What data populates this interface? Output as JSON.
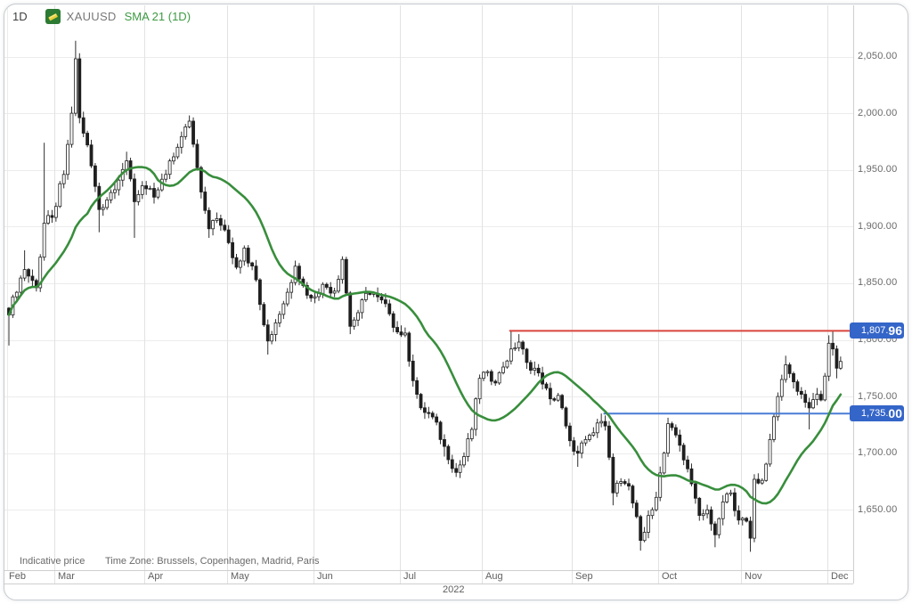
{
  "header": {
    "timeframe": "1D",
    "symbol": "XAUUSD",
    "indicator": "SMA 21 (1D)",
    "symbol_icon": "gold-bar-icon"
  },
  "footer": {
    "note": "Indicative price",
    "timezone": "Time Zone: Brussels, Copenhagen, Madrid, Paris"
  },
  "colors": {
    "up_candle": "#ffffff",
    "down_candle": "#1f1f1f",
    "candle_outline": "#2e2e2e",
    "sma": "#388e3c",
    "resistance": "#d9453d",
    "support": "#4a7bd5",
    "tag_bg": "#3465c8",
    "grid": "#ececec",
    "grid_vertical": "#e2e2e2",
    "axis_line": "#cfcfcf",
    "axis_text": "#6a6a6a"
  },
  "chart_data": {
    "type": "candlestick",
    "symbol": "XAUUSD",
    "interval": "1D",
    "num_candles": 213,
    "ylim": [
      1600,
      2095
    ],
    "grid": true,
    "overlays": [
      {
        "name": "SMA 21 (1D)",
        "kind": "sma",
        "period": 21,
        "color": "#388e3c"
      }
    ],
    "levels": [
      {
        "name": "resistance",
        "value": 1807.96,
        "label": "1,807.96",
        "main": "1,807.",
        "em": "96",
        "color": "#d9453d",
        "start_index": 128
      },
      {
        "name": "support",
        "value": 1735.0,
        "label": "1,735.00",
        "main": "1,735.",
        "em": "00",
        "color": "#4a7bd5",
        "start_index": 152
      }
    ],
    "y_axis": {
      "ticks": [
        {
          "value": 2050,
          "label": "2,050.00"
        },
        {
          "value": 2000,
          "label": "2,000.00"
        },
        {
          "value": 1950,
          "label": "1,950.00"
        },
        {
          "value": 1900,
          "label": "1,900.00"
        },
        {
          "value": 1850,
          "label": "1,850.00"
        },
        {
          "value": 1800,
          "label": "1,800.00"
        },
        {
          "value": 1750,
          "label": "1,750.00"
        },
        {
          "value": 1700,
          "label": "1,700.00"
        },
        {
          "value": 1650,
          "label": "1,650.00"
        }
      ]
    },
    "x_axis": {
      "year": "2022",
      "months": [
        {
          "name": "Feb",
          "start": 0
        },
        {
          "name": "Mar",
          "start": 12
        },
        {
          "name": "Apr",
          "start": 35
        },
        {
          "name": "May",
          "start": 56
        },
        {
          "name": "Jun",
          "start": 78
        },
        {
          "name": "Jul",
          "start": 100
        },
        {
          "name": "Aug",
          "start": 121
        },
        {
          "name": "Sep",
          "start": 144
        },
        {
          "name": "Oct",
          "start": 166
        },
        {
          "name": "Nov",
          "start": 187
        },
        {
          "name": "Dec",
          "start": 209
        }
      ]
    },
    "anchors": [
      [
        0,
        1822,
        null,
        1795
      ],
      [
        1,
        1838,
        null,
        null
      ],
      [
        4,
        1862,
        1879,
        null
      ],
      [
        7,
        1846,
        null,
        null
      ],
      [
        9,
        1903,
        1974,
        1878
      ],
      [
        11,
        1908,
        null,
        null
      ],
      [
        14,
        1946,
        null,
        null
      ],
      [
        16,
        2000,
        null,
        null
      ],
      [
        17,
        2048,
        2064,
        null
      ],
      [
        18,
        1996,
        null,
        null
      ],
      [
        20,
        1972,
        null,
        null
      ],
      [
        23,
        1915,
        null,
        1895
      ],
      [
        26,
        1930,
        null,
        null
      ],
      [
        30,
        1958,
        1966,
        null
      ],
      [
        32,
        1922,
        null,
        1890
      ],
      [
        34,
        1936,
        null,
        null
      ],
      [
        37,
        1926,
        null,
        null
      ],
      [
        40,
        1946,
        null,
        null
      ],
      [
        43,
        1970,
        null,
        null
      ],
      [
        46,
        1993,
        1998,
        null
      ],
      [
        48,
        1952,
        null,
        null
      ],
      [
        51,
        1898,
        null,
        1890
      ],
      [
        53,
        1907,
        null,
        null
      ],
      [
        55,
        1897,
        null,
        null
      ],
      [
        58,
        1864,
        null,
        null
      ],
      [
        60,
        1881,
        null,
        null
      ],
      [
        63,
        1853,
        null,
        null
      ],
      [
        66,
        1799,
        null,
        1787
      ],
      [
        68,
        1815,
        null,
        null
      ],
      [
        71,
        1842,
        null,
        null
      ],
      [
        73,
        1865,
        1870,
        null
      ],
      [
        75,
        1848,
        null,
        null
      ],
      [
        77,
        1837,
        null,
        null
      ],
      [
        80,
        1849,
        null,
        null
      ],
      [
        83,
        1843,
        null,
        null
      ],
      [
        85,
        1871,
        null,
        null
      ],
      [
        87,
        1812,
        null,
        1805
      ],
      [
        89,
        1824,
        null,
        null
      ],
      [
        91,
        1841,
        null,
        null
      ],
      [
        94,
        1838,
        null,
        null
      ],
      [
        97,
        1823,
        null,
        null
      ],
      [
        99,
        1807,
        null,
        null
      ],
      [
        101,
        1806,
        null,
        null
      ],
      [
        103,
        1764,
        null,
        null
      ],
      [
        105,
        1740,
        null,
        null
      ],
      [
        108,
        1732,
        null,
        null
      ],
      [
        111,
        1706,
        null,
        1697
      ],
      [
        114,
        1683,
        null,
        1679
      ],
      [
        116,
        1697,
        null,
        null
      ],
      [
        118,
        1721,
        null,
        null
      ],
      [
        120,
        1766,
        null,
        null
      ],
      [
        122,
        1772,
        null,
        null
      ],
      [
        124,
        1762,
        null,
        null
      ],
      [
        126,
        1776,
        null,
        null
      ],
      [
        128,
        1792,
        1808,
        null
      ],
      [
        130,
        1798,
        1805,
        null
      ],
      [
        132,
        1780,
        null,
        null
      ],
      [
        134,
        1775,
        null,
        null
      ],
      [
        136,
        1761,
        null,
        null
      ],
      [
        138,
        1748,
        null,
        null
      ],
      [
        140,
        1751,
        null,
        null
      ],
      [
        142,
        1724,
        null,
        null
      ],
      [
        143,
        1711,
        null,
        null
      ],
      [
        145,
        1700,
        null,
        1688
      ],
      [
        147,
        1712,
        null,
        null
      ],
      [
        149,
        1718,
        null,
        null
      ],
      [
        151,
        1728,
        1735,
        null
      ],
      [
        152,
        1724,
        null,
        null
      ],
      [
        154,
        1665,
        null,
        1654
      ],
      [
        156,
        1675,
        null,
        null
      ],
      [
        158,
        1671,
        null,
        null
      ],
      [
        160,
        1644,
        null,
        null
      ],
      [
        161,
        1623,
        null,
        1614
      ],
      [
        163,
        1645,
        null,
        null
      ],
      [
        165,
        1661,
        null,
        null
      ],
      [
        167,
        1700,
        null,
        null
      ],
      [
        168,
        1726,
        1730,
        null
      ],
      [
        170,
        1716,
        null,
        null
      ],
      [
        172,
        1694,
        null,
        null
      ],
      [
        174,
        1673,
        null,
        null
      ],
      [
        176,
        1645,
        null,
        null
      ],
      [
        178,
        1650,
        null,
        null
      ],
      [
        180,
        1628,
        null,
        1617
      ],
      [
        182,
        1657,
        null,
        null
      ],
      [
        184,
        1665,
        null,
        null
      ],
      [
        186,
        1641,
        null,
        null
      ],
      [
        188,
        1640,
        null,
        null
      ],
      [
        189,
        1625,
        null,
        1613
      ],
      [
        190,
        1677,
        null,
        null
      ],
      [
        192,
        1676,
        null,
        null
      ],
      [
        194,
        1712,
        null,
        null
      ],
      [
        196,
        1750,
        null,
        null
      ],
      [
        197,
        1765,
        null,
        null
      ],
      [
        198,
        1778,
        1786,
        null
      ],
      [
        200,
        1763,
        null,
        null
      ],
      [
        202,
        1752,
        null,
        null
      ],
      [
        204,
        1740,
        null,
        1721
      ],
      [
        206,
        1752,
        null,
        null
      ],
      [
        207,
        1747,
        null,
        null
      ],
      [
        208,
        1768,
        null,
        null
      ],
      [
        209,
        1797,
        1804,
        null
      ],
      [
        210,
        1792,
        1808,
        null
      ],
      [
        211,
        1775,
        null,
        1766
      ],
      [
        212,
        1781,
        null,
        null
      ]
    ]
  }
}
